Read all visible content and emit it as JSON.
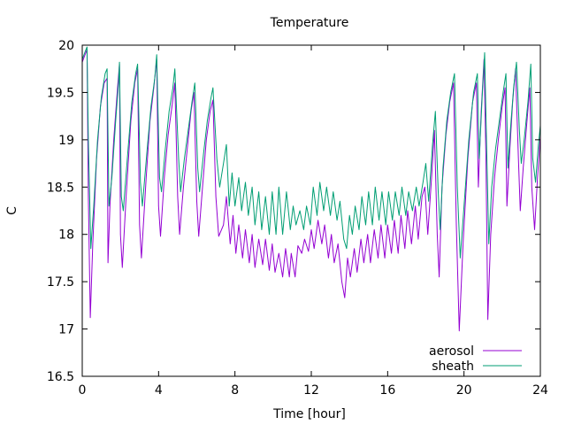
{
  "chart_data": {
    "type": "line",
    "title": "Temperature",
    "xlabel": "Time [hour]",
    "ylabel": "C",
    "xlim": [
      0,
      24
    ],
    "ylim": [
      16.5,
      20
    ],
    "x_ticks": [
      0,
      4,
      8,
      12,
      16,
      20,
      24
    ],
    "y_ticks": [
      16.5,
      17,
      17.5,
      18,
      18.5,
      19,
      19.5,
      20
    ],
    "grid": false,
    "legend_position": "bottom-right",
    "series": [
      {
        "name": "aerosol",
        "color": "#9400d3",
        "points": [
          [
            0.0,
            19.82
          ],
          [
            0.15,
            19.9
          ],
          [
            0.25,
            19.95
          ],
          [
            0.32,
            18.4
          ],
          [
            0.42,
            17.12
          ],
          [
            0.55,
            17.9
          ],
          [
            0.75,
            18.8
          ],
          [
            0.95,
            19.35
          ],
          [
            1.15,
            19.6
          ],
          [
            1.3,
            19.65
          ],
          [
            1.35,
            17.7
          ],
          [
            1.45,
            18.3
          ],
          [
            1.65,
            19.0
          ],
          [
            1.85,
            19.55
          ],
          [
            1.95,
            19.8
          ],
          [
            2.0,
            18.0
          ],
          [
            2.1,
            17.65
          ],
          [
            2.3,
            18.4
          ],
          [
            2.55,
            19.2
          ],
          [
            2.75,
            19.6
          ],
          [
            2.9,
            19.75
          ],
          [
            3.0,
            18.1
          ],
          [
            3.1,
            17.75
          ],
          [
            3.35,
            18.6
          ],
          [
            3.55,
            19.2
          ],
          [
            3.75,
            19.55
          ],
          [
            3.9,
            19.85
          ],
          [
            4.0,
            18.3
          ],
          [
            4.1,
            17.98
          ],
          [
            4.3,
            18.6
          ],
          [
            4.5,
            19.05
          ],
          [
            4.7,
            19.35
          ],
          [
            4.85,
            19.6
          ],
          [
            5.0,
            18.4
          ],
          [
            5.1,
            18.0
          ],
          [
            5.3,
            18.5
          ],
          [
            5.5,
            18.9
          ],
          [
            5.7,
            19.3
          ],
          [
            5.85,
            19.5
          ],
          [
            6.0,
            18.35
          ],
          [
            6.1,
            17.98
          ],
          [
            6.3,
            18.5
          ],
          [
            6.5,
            19.0
          ],
          [
            6.7,
            19.3
          ],
          [
            6.85,
            19.42
          ],
          [
            7.0,
            18.4
          ],
          [
            7.15,
            17.98
          ],
          [
            7.4,
            18.1
          ],
          [
            7.55,
            18.4
          ],
          [
            7.75,
            17.9
          ],
          [
            7.9,
            18.2
          ],
          [
            8.05,
            17.8
          ],
          [
            8.2,
            18.1
          ],
          [
            8.4,
            17.75
          ],
          [
            8.55,
            18.05
          ],
          [
            8.75,
            17.7
          ],
          [
            8.9,
            18.0
          ],
          [
            9.05,
            17.65
          ],
          [
            9.25,
            17.95
          ],
          [
            9.45,
            17.68
          ],
          [
            9.6,
            17.95
          ],
          [
            9.8,
            17.62
          ],
          [
            9.95,
            17.9
          ],
          [
            10.1,
            17.6
          ],
          [
            10.3,
            17.8
          ],
          [
            10.5,
            17.55
          ],
          [
            10.65,
            17.85
          ],
          [
            10.85,
            17.55
          ],
          [
            10.95,
            17.8
          ],
          [
            11.15,
            17.55
          ],
          [
            11.3,
            17.88
          ],
          [
            11.5,
            17.8
          ],
          [
            11.65,
            17.95
          ],
          [
            11.85,
            17.82
          ],
          [
            12.0,
            18.05
          ],
          [
            12.15,
            17.85
          ],
          [
            12.35,
            18.15
          ],
          [
            12.55,
            17.9
          ],
          [
            12.7,
            18.1
          ],
          [
            12.9,
            17.75
          ],
          [
            13.05,
            18.0
          ],
          [
            13.2,
            17.7
          ],
          [
            13.4,
            17.9
          ],
          [
            13.6,
            17.5
          ],
          [
            13.75,
            17.33
          ],
          [
            13.9,
            17.75
          ],
          [
            14.05,
            17.55
          ],
          [
            14.25,
            17.85
          ],
          [
            14.4,
            17.6
          ],
          [
            14.6,
            17.95
          ],
          [
            14.75,
            17.7
          ],
          [
            14.95,
            18.0
          ],
          [
            15.1,
            17.7
          ],
          [
            15.3,
            18.05
          ],
          [
            15.5,
            17.75
          ],
          [
            15.65,
            18.1
          ],
          [
            15.85,
            17.75
          ],
          [
            16.0,
            18.1
          ],
          [
            16.2,
            17.8
          ],
          [
            16.35,
            18.15
          ],
          [
            16.55,
            17.8
          ],
          [
            16.7,
            18.2
          ],
          [
            16.9,
            17.85
          ],
          [
            17.05,
            18.25
          ],
          [
            17.25,
            17.9
          ],
          [
            17.45,
            18.3
          ],
          [
            17.6,
            17.95
          ],
          [
            17.8,
            18.4
          ],
          [
            17.95,
            18.5
          ],
          [
            18.1,
            18.0
          ],
          [
            18.3,
            18.6
          ],
          [
            18.45,
            19.1
          ],
          [
            18.6,
            18.0
          ],
          [
            18.7,
            17.55
          ],
          [
            18.85,
            18.5
          ],
          [
            19.05,
            19.05
          ],
          [
            19.25,
            19.4
          ],
          [
            19.45,
            19.6
          ],
          [
            19.6,
            18.1
          ],
          [
            19.75,
            16.98
          ],
          [
            19.95,
            17.9
          ],
          [
            20.2,
            18.8
          ],
          [
            20.45,
            19.4
          ],
          [
            20.65,
            19.6
          ],
          [
            20.75,
            18.5
          ],
          [
            20.9,
            19.3
          ],
          [
            21.05,
            19.85
          ],
          [
            21.15,
            18.8
          ],
          [
            21.25,
            17.1
          ],
          [
            21.4,
            18.0
          ],
          [
            21.6,
            18.6
          ],
          [
            21.8,
            19.0
          ],
          [
            22.0,
            19.35
          ],
          [
            22.15,
            19.55
          ],
          [
            22.25,
            18.3
          ],
          [
            22.4,
            18.9
          ],
          [
            22.55,
            19.4
          ],
          [
            22.7,
            19.75
          ],
          [
            22.85,
            18.8
          ],
          [
            22.95,
            18.25
          ],
          [
            23.1,
            18.7
          ],
          [
            23.3,
            19.2
          ],
          [
            23.45,
            19.55
          ],
          [
            23.55,
            18.5
          ],
          [
            23.7,
            18.05
          ],
          [
            23.85,
            18.6
          ],
          [
            24.0,
            19.05
          ]
        ]
      },
      {
        "name": "sheath",
        "color": "#009e73",
        "points": [
          [
            0.0,
            19.85
          ],
          [
            0.15,
            19.93
          ],
          [
            0.25,
            19.98
          ],
          [
            0.32,
            19.0
          ],
          [
            0.45,
            17.85
          ],
          [
            0.6,
            18.3
          ],
          [
            0.8,
            19.0
          ],
          [
            1.0,
            19.45
          ],
          [
            1.2,
            19.7
          ],
          [
            1.3,
            19.75
          ],
          [
            1.4,
            18.3
          ],
          [
            1.55,
            18.6
          ],
          [
            1.75,
            19.2
          ],
          [
            1.9,
            19.6
          ],
          [
            1.95,
            19.82
          ],
          [
            2.05,
            18.4
          ],
          [
            2.15,
            18.25
          ],
          [
            2.4,
            18.9
          ],
          [
            2.6,
            19.4
          ],
          [
            2.8,
            19.7
          ],
          [
            2.9,
            19.8
          ],
          [
            3.05,
            18.55
          ],
          [
            3.15,
            18.3
          ],
          [
            3.4,
            18.9
          ],
          [
            3.6,
            19.35
          ],
          [
            3.8,
            19.65
          ],
          [
            3.9,
            19.9
          ],
          [
            4.05,
            18.6
          ],
          [
            4.15,
            18.45
          ],
          [
            4.35,
            18.9
          ],
          [
            4.55,
            19.3
          ],
          [
            4.75,
            19.55
          ],
          [
            4.85,
            19.75
          ],
          [
            5.05,
            18.8
          ],
          [
            5.15,
            18.45
          ],
          [
            5.35,
            18.8
          ],
          [
            5.55,
            19.1
          ],
          [
            5.75,
            19.4
          ],
          [
            5.9,
            19.6
          ],
          [
            6.05,
            18.7
          ],
          [
            6.15,
            18.45
          ],
          [
            6.35,
            18.85
          ],
          [
            6.55,
            19.2
          ],
          [
            6.75,
            19.45
          ],
          [
            6.85,
            19.55
          ],
          [
            7.05,
            18.8
          ],
          [
            7.2,
            18.5
          ],
          [
            7.4,
            18.75
          ],
          [
            7.55,
            18.95
          ],
          [
            7.7,
            18.3
          ],
          [
            7.85,
            18.65
          ],
          [
            8.0,
            18.3
          ],
          [
            8.2,
            18.6
          ],
          [
            8.35,
            18.25
          ],
          [
            8.55,
            18.55
          ],
          [
            8.7,
            18.2
          ],
          [
            8.9,
            18.5
          ],
          [
            9.05,
            18.1
          ],
          [
            9.25,
            18.45
          ],
          [
            9.4,
            18.05
          ],
          [
            9.6,
            18.4
          ],
          [
            9.8,
            18.0
          ],
          [
            9.95,
            18.45
          ],
          [
            10.15,
            18.0
          ],
          [
            10.3,
            18.5
          ],
          [
            10.5,
            18.0
          ],
          [
            10.7,
            18.45
          ],
          [
            10.9,
            18.05
          ],
          [
            11.05,
            18.3
          ],
          [
            11.2,
            18.1
          ],
          [
            11.4,
            18.25
          ],
          [
            11.6,
            18.05
          ],
          [
            11.75,
            18.3
          ],
          [
            11.95,
            18.1
          ],
          [
            12.1,
            18.5
          ],
          [
            12.3,
            18.2
          ],
          [
            12.45,
            18.55
          ],
          [
            12.65,
            18.25
          ],
          [
            12.8,
            18.5
          ],
          [
            13.0,
            18.2
          ],
          [
            13.15,
            18.45
          ],
          [
            13.35,
            18.15
          ],
          [
            13.5,
            18.35
          ],
          [
            13.7,
            17.95
          ],
          [
            13.85,
            17.85
          ],
          [
            14.0,
            18.2
          ],
          [
            14.15,
            18.0
          ],
          [
            14.3,
            18.3
          ],
          [
            14.5,
            18.05
          ],
          [
            14.65,
            18.4
          ],
          [
            14.85,
            18.1
          ],
          [
            15.0,
            18.45
          ],
          [
            15.2,
            18.1
          ],
          [
            15.35,
            18.5
          ],
          [
            15.55,
            18.15
          ],
          [
            15.7,
            18.45
          ],
          [
            15.9,
            18.1
          ],
          [
            16.05,
            18.45
          ],
          [
            16.25,
            18.15
          ],
          [
            16.4,
            18.45
          ],
          [
            16.6,
            18.2
          ],
          [
            16.75,
            18.5
          ],
          [
            16.95,
            18.2
          ],
          [
            17.1,
            18.45
          ],
          [
            17.3,
            18.25
          ],
          [
            17.5,
            18.5
          ],
          [
            17.65,
            18.3
          ],
          [
            17.85,
            18.55
          ],
          [
            18.0,
            18.75
          ],
          [
            18.15,
            18.35
          ],
          [
            18.35,
            18.95
          ],
          [
            18.5,
            19.3
          ],
          [
            18.65,
            18.45
          ],
          [
            18.75,
            18.05
          ],
          [
            18.9,
            18.7
          ],
          [
            19.1,
            19.2
          ],
          [
            19.3,
            19.5
          ],
          [
            19.5,
            19.7
          ],
          [
            19.65,
            18.5
          ],
          [
            19.8,
            17.75
          ],
          [
            20.0,
            18.3
          ],
          [
            20.25,
            19.0
          ],
          [
            20.5,
            19.5
          ],
          [
            20.7,
            19.7
          ],
          [
            20.8,
            18.8
          ],
          [
            20.95,
            19.45
          ],
          [
            21.08,
            19.92
          ],
          [
            21.18,
            19.0
          ],
          [
            21.3,
            17.9
          ],
          [
            21.45,
            18.5
          ],
          [
            21.65,
            18.9
          ],
          [
            21.85,
            19.2
          ],
          [
            22.05,
            19.5
          ],
          [
            22.2,
            19.7
          ],
          [
            22.3,
            18.7
          ],
          [
            22.45,
            19.15
          ],
          [
            22.6,
            19.55
          ],
          [
            22.75,
            19.82
          ],
          [
            22.9,
            19.1
          ],
          [
            23.0,
            18.75
          ],
          [
            23.15,
            19.0
          ],
          [
            23.35,
            19.4
          ],
          [
            23.5,
            19.8
          ],
          [
            23.6,
            18.8
          ],
          [
            23.75,
            18.55
          ],
          [
            23.9,
            18.95
          ],
          [
            24.0,
            19.15
          ]
        ]
      }
    ]
  }
}
